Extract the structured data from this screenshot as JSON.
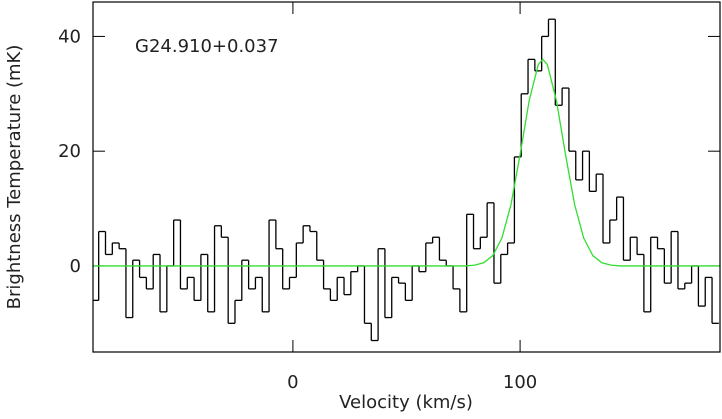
{
  "chart_data": {
    "type": "step",
    "annotation": "G24.910+0.037",
    "x_label": "Velocity (km/s)",
    "y_label": "Brightness Temperature (mK)",
    "xlim": [
      -88,
      188
    ],
    "ylim": [
      -15,
      46
    ],
    "xticks": [
      0,
      100
    ],
    "yticks": [
      0,
      20,
      40
    ],
    "grid": false,
    "series": [
      {
        "name": "spectrum",
        "color": "#000000",
        "channel_width": 3,
        "x": [
          -87,
          -84,
          -81,
          -78,
          -75,
          -72,
          -69,
          -66,
          -63,
          -60,
          -57,
          -54,
          -51,
          -48,
          -45,
          -42,
          -39,
          -36,
          -33,
          -30,
          -27,
          -24,
          -21,
          -18,
          -15,
          -12,
          -9,
          -6,
          -3,
          0,
          3,
          6,
          9,
          12,
          15,
          18,
          21,
          24,
          27,
          30,
          33,
          36,
          39,
          42,
          45,
          48,
          51,
          54,
          57,
          60,
          63,
          66,
          69,
          72,
          75,
          78,
          81,
          84,
          87,
          90,
          93,
          96,
          99,
          102,
          105,
          108,
          111,
          114,
          117,
          120,
          123,
          126,
          129,
          132,
          135,
          138,
          141,
          144,
          147,
          150,
          153,
          156,
          159,
          162,
          165,
          168,
          171,
          174,
          177,
          180,
          183,
          186
        ],
        "values": [
          -6,
          6,
          2,
          4,
          3,
          -9,
          1,
          -2,
          -4,
          2,
          -8,
          0,
          8,
          -4,
          -2,
          -6,
          2,
          -8,
          7,
          5,
          -10,
          -6,
          1,
          -4,
          -2,
          -8,
          8,
          3,
          -4,
          -2,
          4,
          7,
          6,
          1,
          -4,
          -6,
          -2,
          -5,
          -1,
          0,
          -10,
          -13,
          3,
          -9,
          -2,
          -3,
          -6,
          0,
          -1,
          4,
          5,
          1,
          0,
          -4,
          -8,
          9,
          3,
          5,
          11,
          -3,
          2,
          4,
          19,
          30,
          36,
          34,
          40,
          43,
          28,
          31,
          20,
          15,
          20,
          13,
          16,
          4,
          8,
          12,
          1,
          5,
          2,
          -8,
          5,
          3,
          -3,
          6,
          -4,
          -3,
          0,
          -7,
          -2,
          -10
        ]
      },
      {
        "name": "fit",
        "color": "#33dd33",
        "x": [
          -88,
          76,
          80,
          84,
          88,
          92,
          96,
          100,
          104,
          108,
          110,
          112,
          116,
          120,
          124,
          128,
          132,
          136,
          140,
          144,
          188
        ],
        "values": [
          0,
          0,
          0.14,
          0.55,
          1.81,
          4.87,
          10.7,
          19.4,
          28.8,
          35.1,
          36,
          35.1,
          28.8,
          19.4,
          10.7,
          4.87,
          1.81,
          0.55,
          0.14,
          0,
          0
        ]
      }
    ]
  }
}
